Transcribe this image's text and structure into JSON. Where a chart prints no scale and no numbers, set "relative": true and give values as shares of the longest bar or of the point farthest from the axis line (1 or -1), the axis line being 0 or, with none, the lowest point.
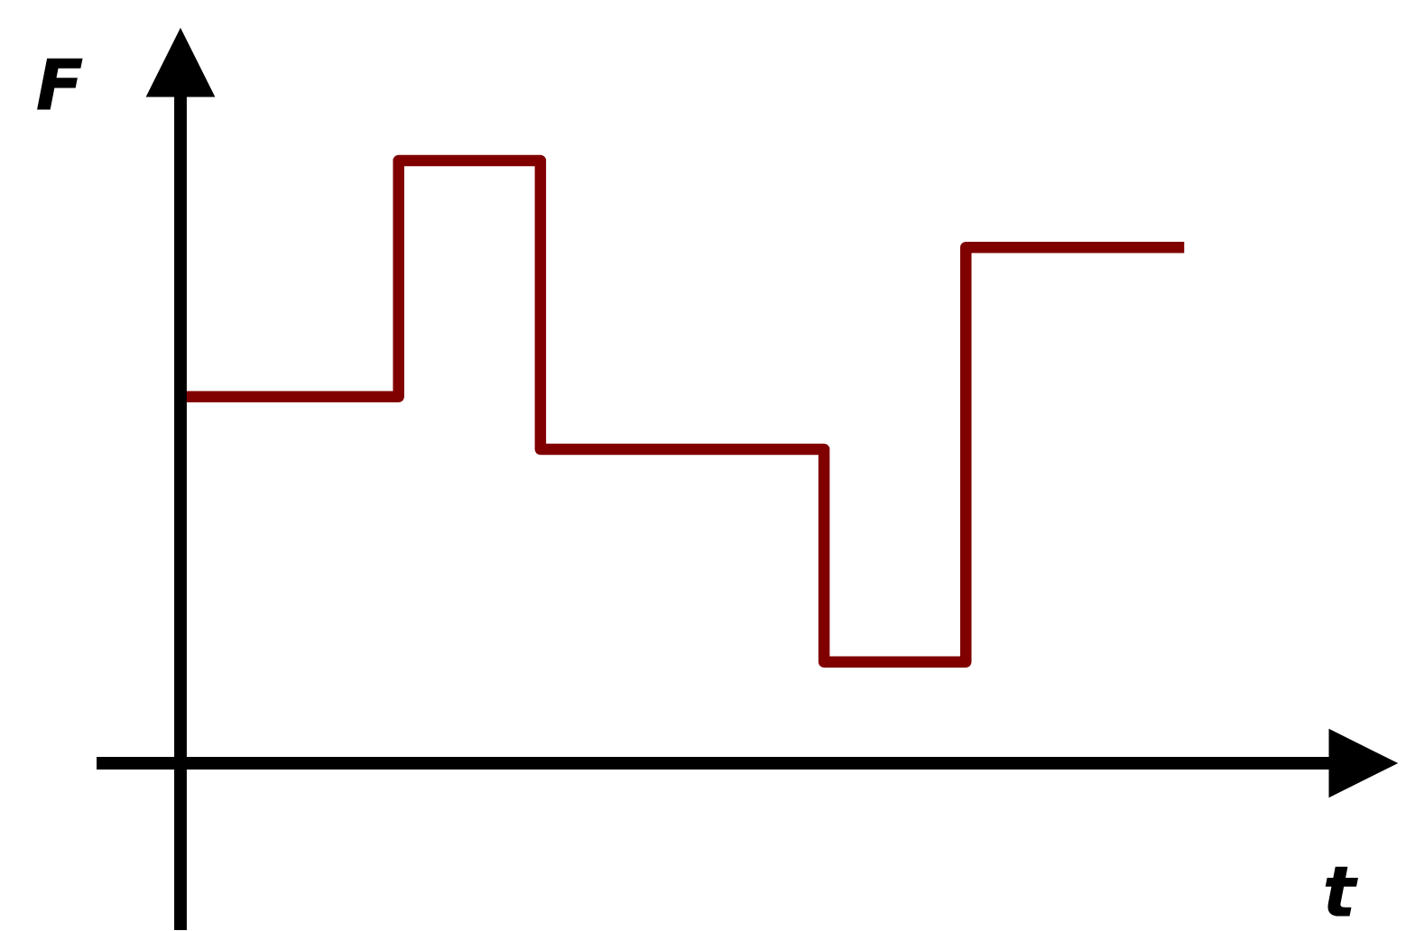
{
  "chart_data": {
    "type": "step",
    "xlabel": "t",
    "ylabel": "F",
    "relative": true,
    "categories": [
      null,
      null,
      null,
      null,
      null,
      null,
      null,
      null,
      null,
      null,
      null,
      null,
      null,
      null,
      null
    ],
    "series": [
      {
        "color": "#800000",
        "values": [
          0.608,
          0.608,
          0.608,
          1,
          1,
          0.521,
          0.521,
          0.521,
          0.521,
          0.168,
          0.168,
          0.856,
          0.856,
          0.856,
          0.856
        ]
      }
    ],
    "tick_labels": false,
    "line_style": "solid",
    "marker": "none"
  }
}
